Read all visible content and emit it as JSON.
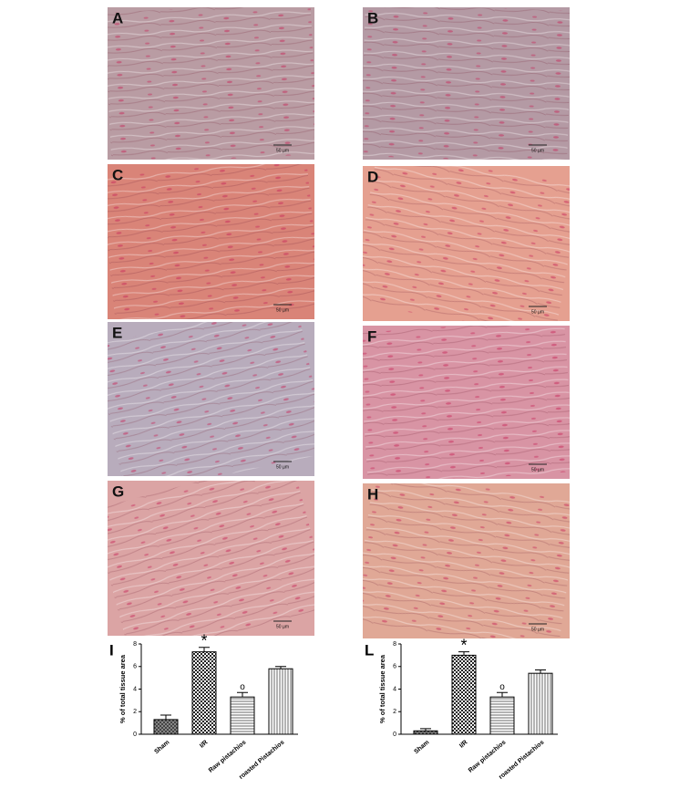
{
  "panels": [
    {
      "label": "A",
      "scale": "50 µm"
    },
    {
      "label": "B",
      "scale": "50 µm"
    },
    {
      "label": "C",
      "scale": "50 µm"
    },
    {
      "label": "D",
      "scale": "50 µm"
    },
    {
      "label": "E",
      "scale": "50 µm"
    },
    {
      "label": "F",
      "scale": "50 µm"
    },
    {
      "label": "G",
      "scale": "50 µm"
    },
    {
      "label": "H",
      "scale": "50 µm"
    }
  ],
  "chart_data": [
    {
      "type": "bar",
      "panel_label": "I",
      "y_label": "% of total tissue area",
      "categories": [
        "Sham",
        "I/R",
        "Raw pistachios",
        "roasted Pistachios"
      ],
      "values": [
        1.3,
        7.3,
        3.3,
        5.8
      ],
      "errors": [
        0.4,
        0.4,
        0.4,
        0.2
      ],
      "annotations": [
        "*",
        "o"
      ],
      "annotation_categories": [
        1,
        2
      ],
      "ylim": [
        0,
        8
      ],
      "yticks": [
        0,
        2,
        4,
        6,
        8
      ]
    },
    {
      "type": "bar",
      "panel_label": "L",
      "y_label": "% of total tissue area",
      "categories": [
        "Sham",
        "I/R",
        "Raw pistachios",
        "roasted Pistachios"
      ],
      "values": [
        0.3,
        7.0,
        3.3,
        5.4
      ],
      "errors": [
        0.2,
        0.3,
        0.4,
        0.3
      ],
      "annotations": [
        "*",
        "o"
      ],
      "annotation_categories": [
        1,
        2
      ],
      "ylim": [
        0,
        8
      ],
      "yticks": [
        0,
        2,
        4,
        6,
        8
      ]
    }
  ]
}
